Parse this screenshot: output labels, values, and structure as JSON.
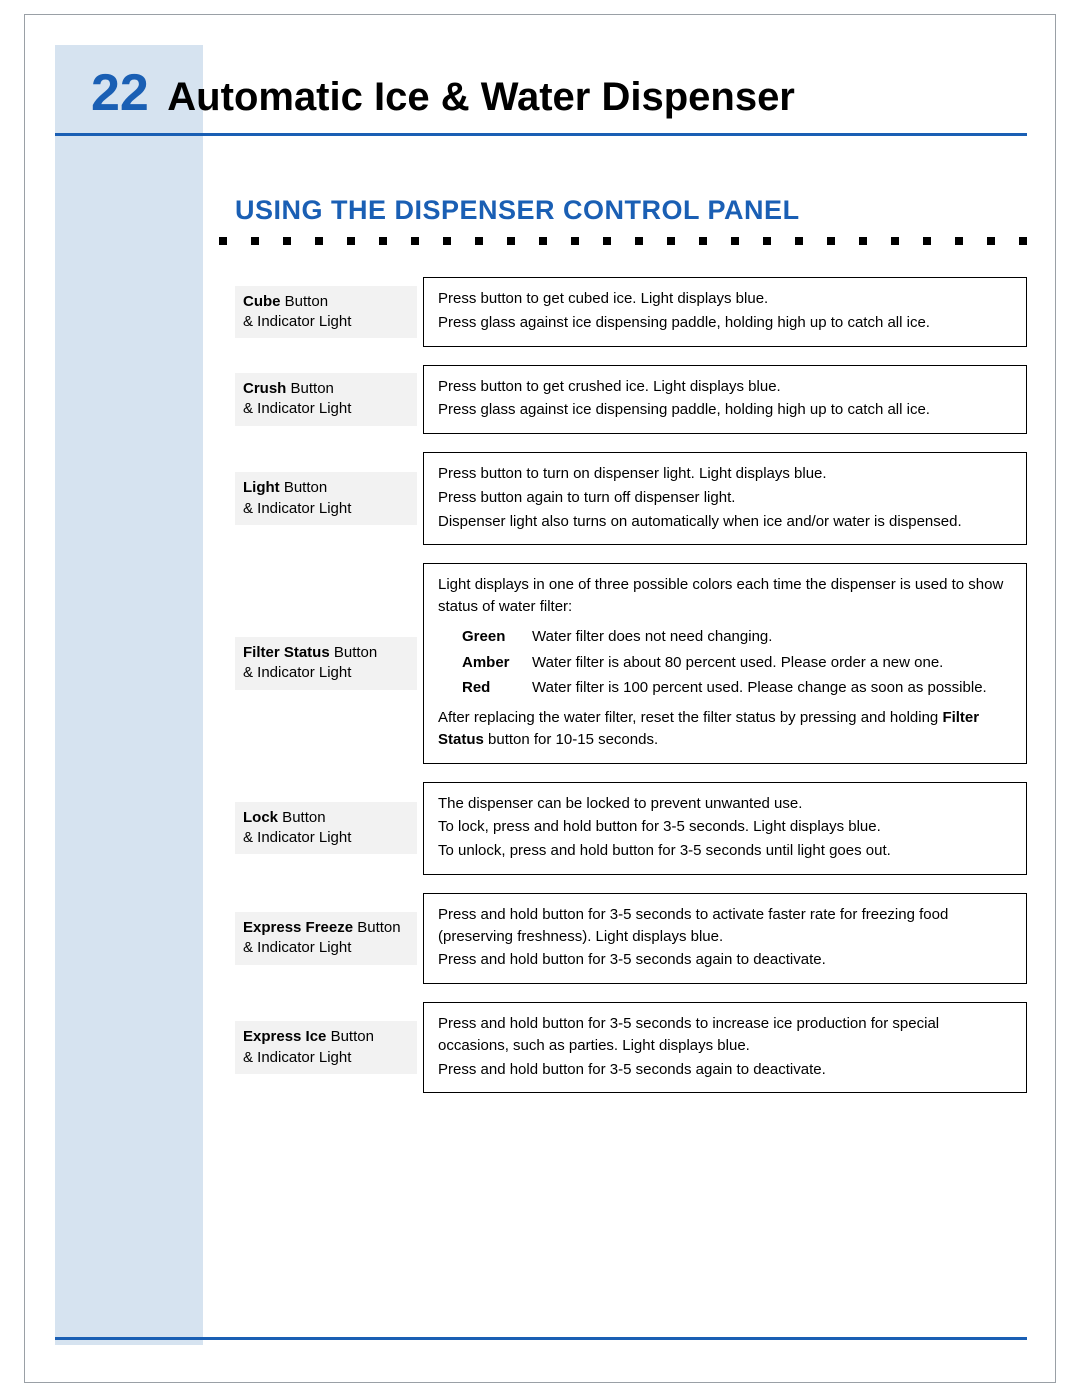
{
  "colors": {
    "accent": "#1a5fb4",
    "sidebar": "#d6e3f0",
    "labelBg": "#f2f2f2",
    "border": "#000000",
    "pageBorder": "#9aa0a6",
    "text": "#000000"
  },
  "typography": {
    "pageNumSize": 52,
    "pageTitleSize": 40,
    "sectionTitleSize": 27,
    "bodySize": 15
  },
  "header": {
    "pageNumber": "22",
    "title": "Automatic Ice & Water Dispenser"
  },
  "section": {
    "title": "USING THE DISPENSER CONTROL PANEL"
  },
  "dots": {
    "count": 30,
    "lightCount": 4
  },
  "rows": [
    {
      "name": "Cube",
      "labelBold": "Cube",
      "labelRest": " Button",
      "labelLine2": "& Indicator Light",
      "lines": [
        "Press button to get cubed ice. Light displays blue.",
        "Press glass against ice dispensing paddle, holding high up to catch all ice."
      ]
    },
    {
      "name": "Crush",
      "labelBold": "Crush",
      "labelRest": " Button",
      "labelLine2": "& Indicator Light",
      "lines": [
        "Press button to get crushed ice. Light displays blue.",
        "Press glass against ice dispensing paddle, holding high up to catch all ice."
      ]
    },
    {
      "name": "Light",
      "labelBold": "Light",
      "labelRest": " Button",
      "labelLine2": "& Indicator Light",
      "lines": [
        "Press button to turn on dispenser light. Light displays blue.",
        "Press button again to turn off dispenser light.",
        "Dispenser light also turns on automatically when ice and/or water is dispensed."
      ]
    },
    {
      "name": "FilterStatus",
      "labelBold": "Filter Status",
      "labelRest": " Button",
      "labelLine2": "& Indicator Light",
      "intro": "Light displays in one of three possible colors each time the dispenser is used to show status of water filter:",
      "colors": [
        {
          "name": "Green",
          "text": "Water filter does not need changing."
        },
        {
          "name": "Amber",
          "text": "Water filter is about 80 percent used. Please order a new one."
        },
        {
          "name": "Red",
          "text": "Water filter is 100 percent used. Please change as soon as possible."
        }
      ],
      "outroPre": "After replacing the water filter, reset the filter status by pressing and holding ",
      "outroBold": "Filter Status",
      "outroPost": " button for 10-15 seconds."
    },
    {
      "name": "Lock",
      "labelBold": "Lock",
      "labelRest": " Button",
      "labelLine2": "& Indicator Light",
      "lines": [
        "The dispenser can be locked to prevent unwanted use.",
        "To lock, press and hold button for 3-5 seconds. Light displays blue.",
        "To unlock, press and hold button for 3-5 seconds until light goes out."
      ]
    },
    {
      "name": "ExpressFreeze",
      "labelBold": "Express Freeze",
      "labelRest": " Button",
      "labelLine2": "& Indicator Light",
      "lines": [
        "Press and hold button for 3-5 seconds to activate faster rate for freezing food (preserving freshness). Light displays blue.",
        "Press and hold button for 3-5 seconds again to deactivate."
      ]
    },
    {
      "name": "ExpressIce",
      "labelBold": "Express Ice",
      "labelRest": " Button",
      "labelLine2": "& Indicator Light",
      "lines": [
        "Press and hold button for 3-5 seconds to increase ice production for special occasions, such as parties. Light displays blue.",
        "Press and hold button for 3-5 seconds again to deactivate."
      ]
    }
  ]
}
